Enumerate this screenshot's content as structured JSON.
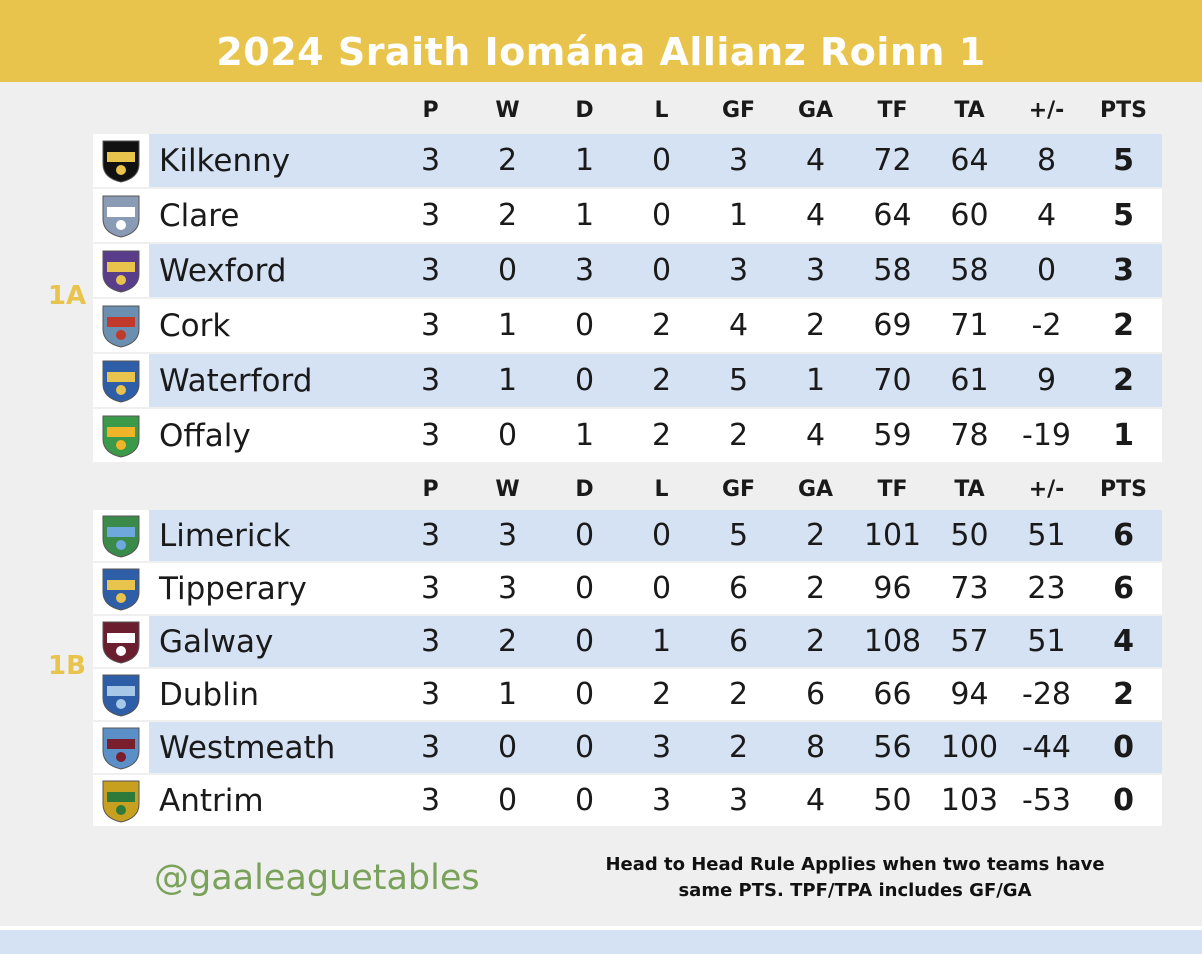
{
  "title": "2024 Sraith Iomána Allianz Roinn 1",
  "columns": [
    "P",
    "W",
    "D",
    "L",
    "GF",
    "GA",
    "TF",
    "TA",
    "+/-",
    "PTS"
  ],
  "groups": [
    {
      "label": "1A",
      "teams": [
        {
          "name": "Kilkenny",
          "stats": [
            "3",
            "2",
            "1",
            "0",
            "3",
            "4",
            "72",
            "64",
            "8",
            "5"
          ],
          "crest_color": "#111111",
          "crest_accent": "#e9c44d"
        },
        {
          "name": "Clare",
          "stats": [
            "3",
            "2",
            "1",
            "0",
            "1",
            "4",
            "64",
            "60",
            "4",
            "5"
          ],
          "crest_color": "#8a9bb5",
          "crest_accent": "#ffffff"
        },
        {
          "name": "Wexford",
          "stats": [
            "3",
            "0",
            "3",
            "0",
            "3",
            "3",
            "58",
            "58",
            "0",
            "3"
          ],
          "crest_color": "#5a3d8a",
          "crest_accent": "#e9c44d"
        },
        {
          "name": "Cork",
          "stats": [
            "3",
            "1",
            "0",
            "2",
            "4",
            "2",
            "69",
            "71",
            "-2",
            "2"
          ],
          "crest_color": "#6a8fb0",
          "crest_accent": "#c0392b"
        },
        {
          "name": "Waterford",
          "stats": [
            "3",
            "1",
            "0",
            "2",
            "5",
            "1",
            "70",
            "61",
            "9",
            "2"
          ],
          "crest_color": "#2e5ea8",
          "crest_accent": "#e9c44d"
        },
        {
          "name": "Offaly",
          "stats": [
            "3",
            "0",
            "1",
            "2",
            "2",
            "4",
            "59",
            "78",
            "-19",
            "1"
          ],
          "crest_color": "#3a9a4a",
          "crest_accent": "#f0b429"
        }
      ]
    },
    {
      "label": "1B",
      "teams": [
        {
          "name": "Limerick",
          "stats": [
            "3",
            "3",
            "0",
            "0",
            "5",
            "2",
            "101",
            "50",
            "51",
            "6"
          ],
          "crest_color": "#3a8a4a",
          "crest_accent": "#6fa8dc"
        },
        {
          "name": "Tipperary",
          "stats": [
            "3",
            "3",
            "0",
            "0",
            "6",
            "2",
            "96",
            "73",
            "23",
            "6"
          ],
          "crest_color": "#2e5ea8",
          "crest_accent": "#e9c44d"
        },
        {
          "name": "Galway",
          "stats": [
            "3",
            "2",
            "0",
            "1",
            "6",
            "2",
            "108",
            "57",
            "51",
            "4"
          ],
          "crest_color": "#6b1e2e",
          "crest_accent": "#ffffff"
        },
        {
          "name": "Dublin",
          "stats": [
            "3",
            "1",
            "0",
            "2",
            "2",
            "6",
            "66",
            "94",
            "-28",
            "2"
          ],
          "crest_color": "#2e5ea8",
          "crest_accent": "#a8c8e8"
        },
        {
          "name": "Westmeath",
          "stats": [
            "3",
            "0",
            "0",
            "3",
            "2",
            "8",
            "56",
            "100",
            "-44",
            "0"
          ],
          "crest_color": "#5b8fc8",
          "crest_accent": "#7a1e2e"
        },
        {
          "name": "Antrim",
          "stats": [
            "3",
            "0",
            "0",
            "3",
            "3",
            "4",
            "50",
            "103",
            "-53",
            "0"
          ],
          "crest_color": "#c8a020",
          "crest_accent": "#2e7a3a"
        }
      ]
    }
  ],
  "footer": {
    "handle": "@gaaleaguetables",
    "note_line1": "Head to Head Rule Applies when two teams have",
    "note_line2": "same PTS. TPF/TPA includes GF/GA"
  },
  "colors": {
    "header": "#e9c44d",
    "stripe": "#d5e2f3",
    "handle": "#7aa25a"
  }
}
